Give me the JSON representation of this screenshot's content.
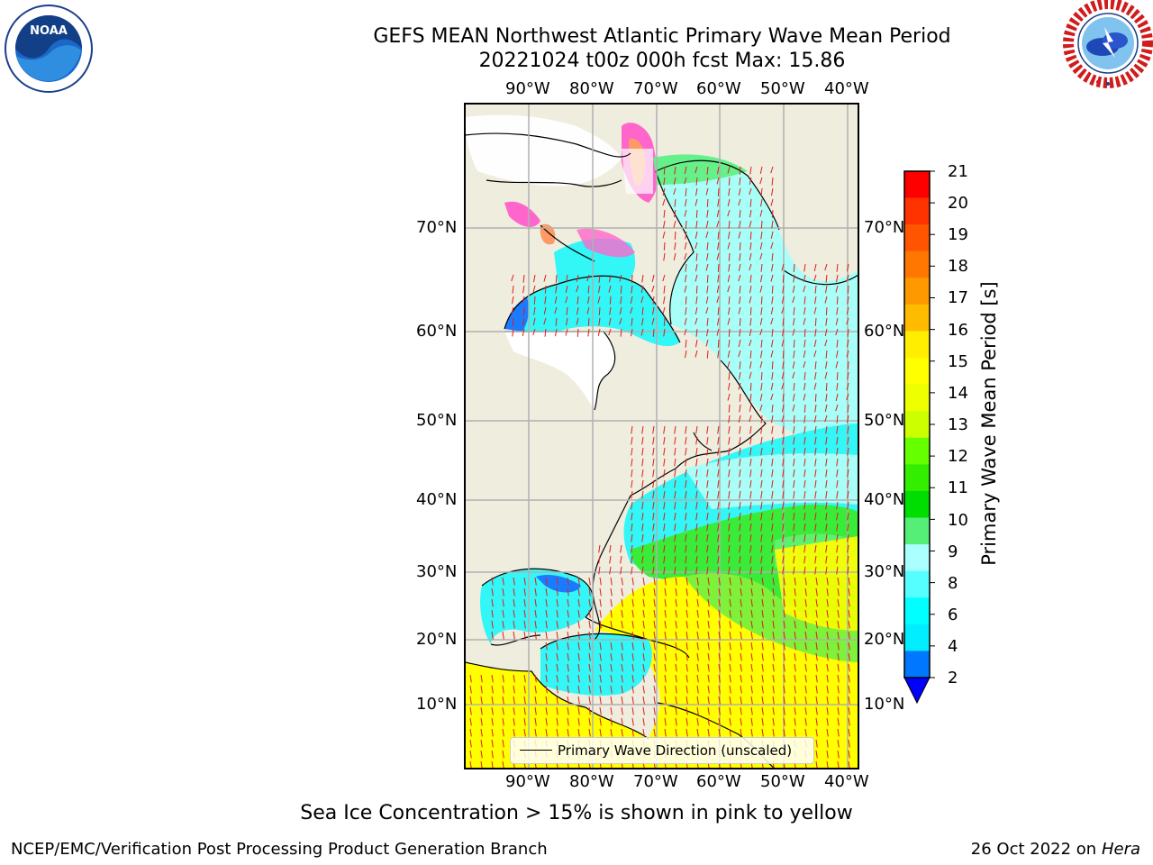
{
  "title": {
    "line1": "GEFS MEAN Northwest Atlantic Primary Wave Mean Period",
    "line2": "20221024 t00z 000h fcst   Max: 15.86"
  },
  "lon_labels": [
    "90°W",
    "80°W",
    "70°W",
    "60°W",
    "50°W",
    "40°W"
  ],
  "lat_labels_left": [
    "70°N",
    "60°N",
    "50°N",
    "40°N",
    "30°N",
    "20°N",
    "10°N"
  ],
  "lat_labels_right": [
    "70°N",
    "60°N",
    "50°N",
    "40°N",
    "30°N",
    "20°N",
    "10°N"
  ],
  "legend": {
    "line_label": "Primary Wave Direction (unscaled)"
  },
  "colorbar": {
    "label": "Primary Wave Mean Period [s]",
    "ticks": [
      "21",
      "20",
      "19",
      "18",
      "17",
      "16",
      "15",
      "14",
      "13",
      "12",
      "11",
      "10",
      "9",
      "8",
      "6",
      "4",
      "2"
    ],
    "colors": [
      "#ff0000",
      "#ff3300",
      "#ff5500",
      "#ff7700",
      "#ff9900",
      "#ffbb00",
      "#ffee00",
      "#ffff00",
      "#eeff00",
      "#ccff00",
      "#66ff00",
      "#33ee00",
      "#00dd00",
      "#55ee77",
      "#aaffff",
      "#55ffff",
      "#00ffff",
      "#00eeff",
      "#0077ff",
      "#0000ff"
    ]
  },
  "caption": "Sea Ice Concentration > 15% is shown in pink to yellow",
  "footer": {
    "left": "NCEP/EMC/Verification Post Processing Product Generation Branch",
    "date": "26 Oct 2022 on ",
    "machine": "Hera"
  },
  "logos": {
    "left": {
      "text": "NOAA",
      "ring_text": "NATIONAL OCEANIC AND ATMOSPHERIC ADMINISTRATION · U.S. DEPARTMENT OF COMMERCE"
    },
    "right": {
      "ring_text": "NATIONAL WEATHER SERVICE"
    }
  }
}
